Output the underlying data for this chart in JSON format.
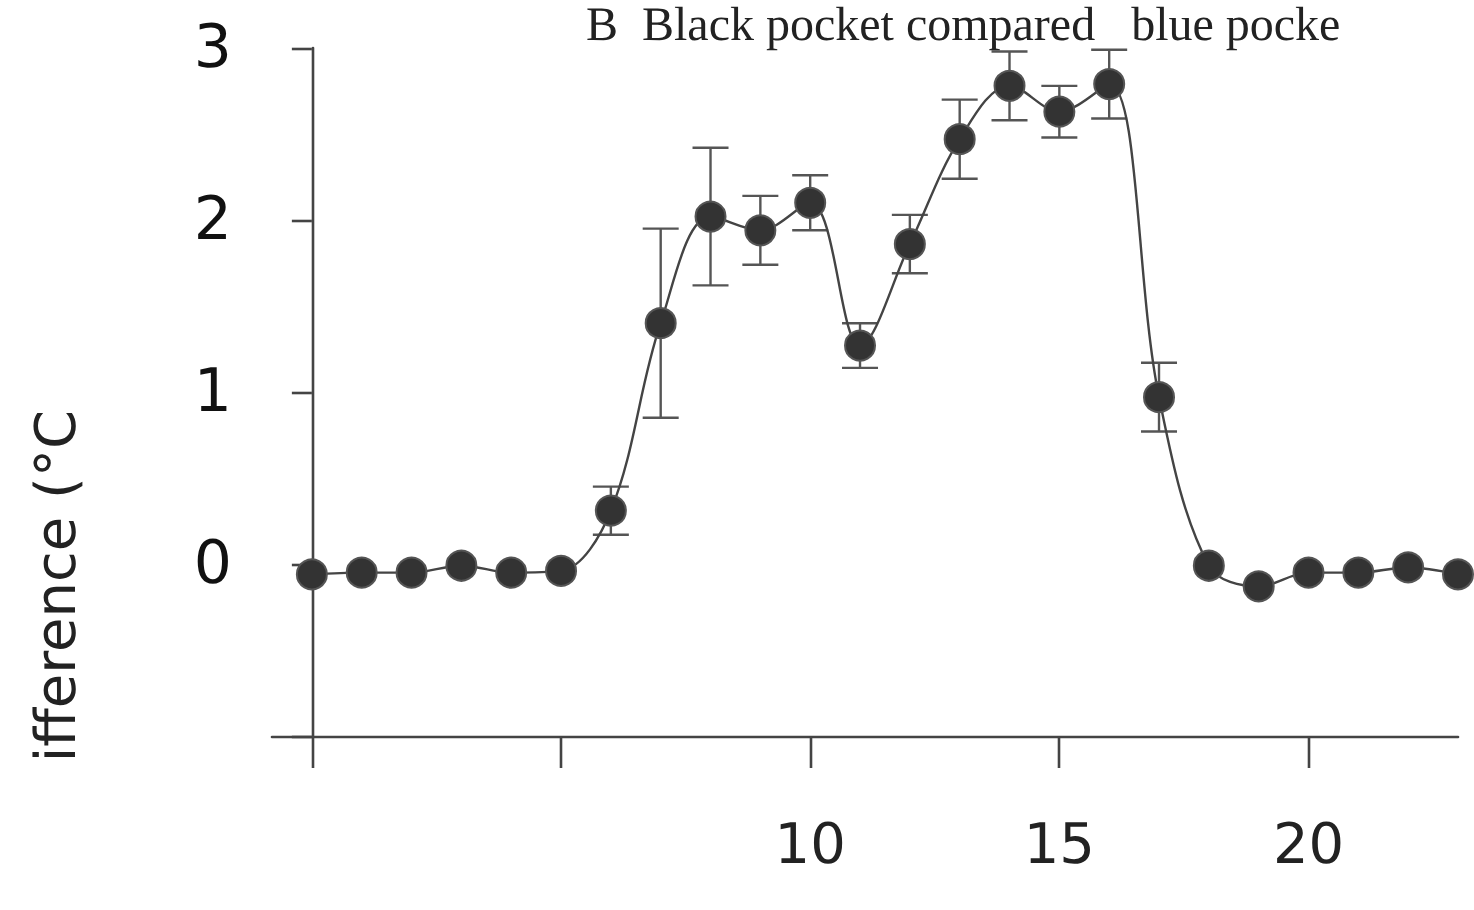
{
  "chart_data": {
    "type": "line",
    "title": "B  Black pocket compared   blue pocke",
    "ylabel": "ifference (°C",
    "x": [
      0,
      1,
      2,
      3,
      4,
      5,
      6,
      7,
      8,
      9,
      10,
      11,
      12,
      13,
      14,
      15,
      16,
      17,
      18,
      19,
      20,
      21,
      22,
      23
    ],
    "series": [
      {
        "color": "#333333",
        "values": [
          -0.06,
          -0.05,
          -0.05,
          -0.01,
          -0.05,
          -0.04,
          0.31,
          1.4,
          2.02,
          1.94,
          2.1,
          1.27,
          1.86,
          2.47,
          2.78,
          2.63,
          2.79,
          0.97,
          -0.01,
          -0.13,
          -0.05,
          -0.05,
          -0.02,
          -0.06
        ],
        "errors": [
          null,
          null,
          null,
          null,
          null,
          null,
          0.14,
          0.55,
          0.4,
          0.2,
          0.16,
          0.13,
          0.17,
          0.23,
          0.2,
          0.15,
          0.2,
          0.2,
          null,
          null,
          null,
          null,
          null,
          null
        ]
      }
    ],
    "xlim": [
      -0.8,
      23
    ],
    "xticks": [
      {
        "value": 0,
        "label": null
      },
      {
        "value": 5,
        "label": null
      },
      10,
      15,
      20
    ],
    "ylim": [
      -1,
      3
    ],
    "yticks": [
      {
        "value": -1,
        "label": null
      },
      0,
      1,
      2,
      3
    ],
    "marker": "circle",
    "line_style": "solid"
  }
}
